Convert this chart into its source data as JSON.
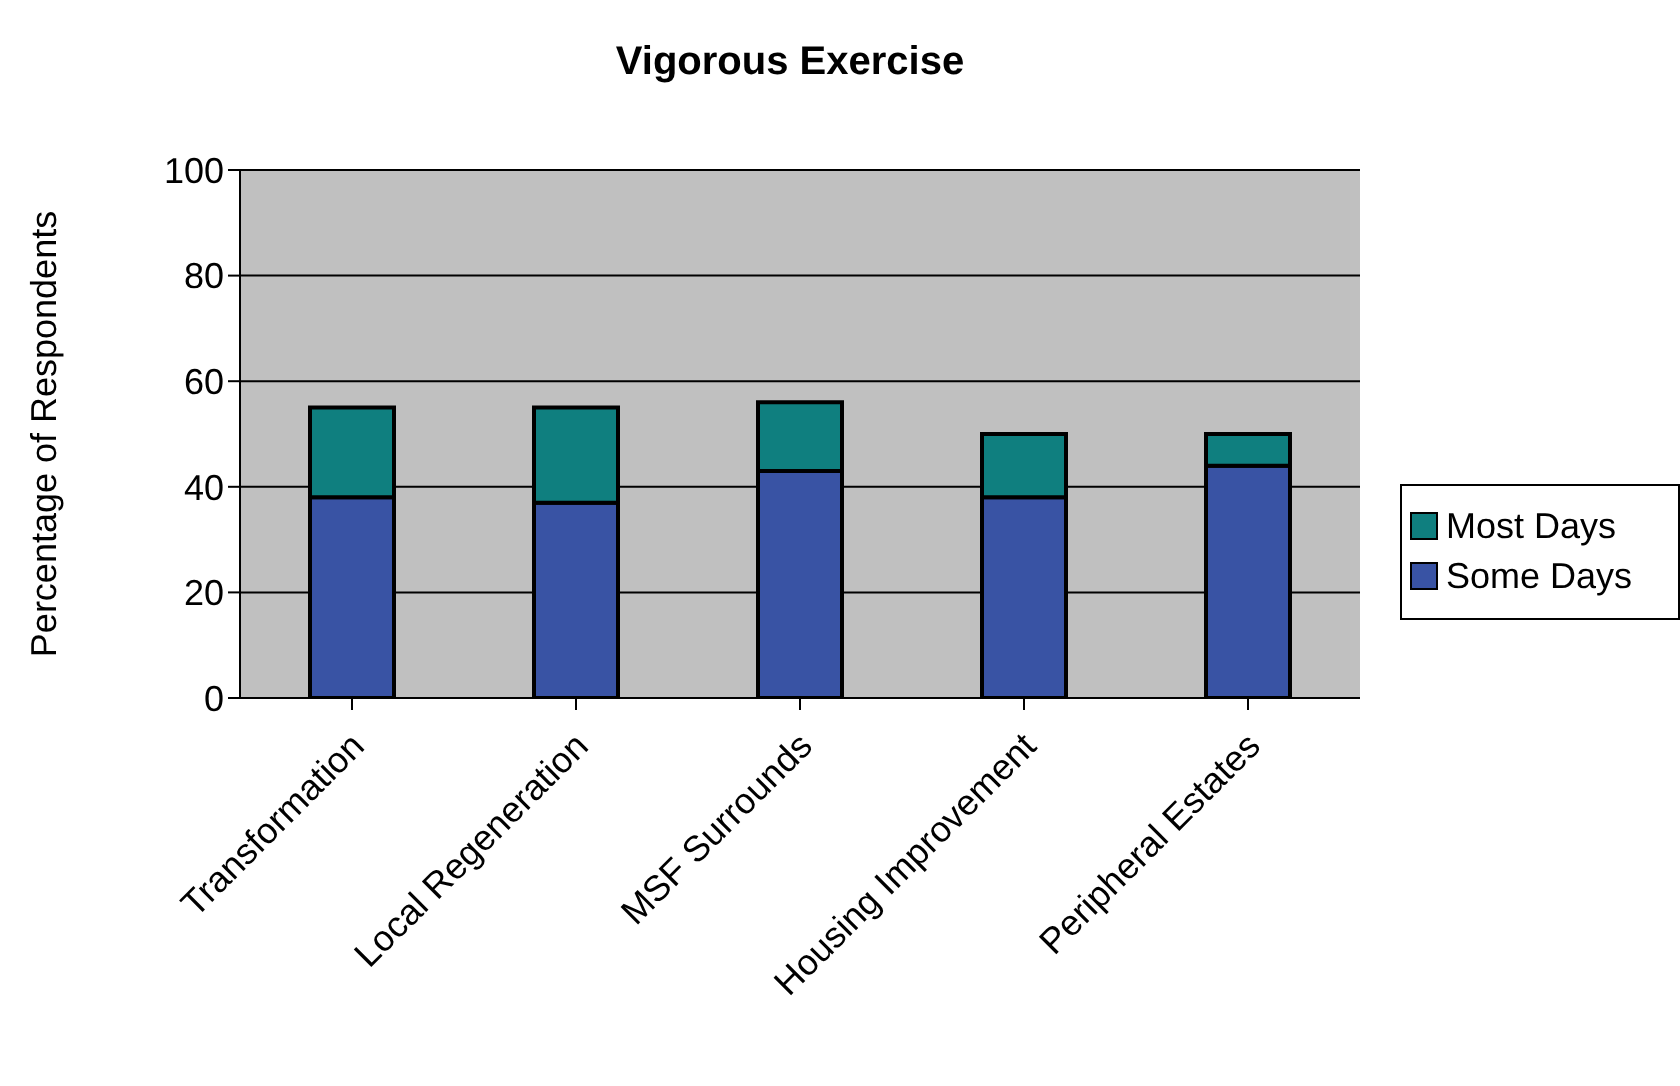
{
  "chart_data": {
    "type": "bar",
    "title": "Vigorous Exercise",
    "ylabel": "Percentage of Respondents",
    "categories": [
      "Transformation",
      "Local Regeneration",
      "MSF Surrounds",
      "Housing Improvement",
      "Peripheral Estates"
    ],
    "series": [
      {
        "name": "Some Days",
        "color": "#3953a4",
        "values": [
          38,
          37,
          43,
          38,
          44
        ]
      },
      {
        "name": "Most Days",
        "color": "#0f7f7f",
        "values": [
          17,
          18,
          13,
          12,
          6
        ]
      }
    ],
    "stacked": true,
    "ylim": [
      0,
      100
    ],
    "yticks": [
      0,
      20,
      40,
      60,
      80,
      100
    ],
    "grid": "y",
    "legend": "right"
  }
}
